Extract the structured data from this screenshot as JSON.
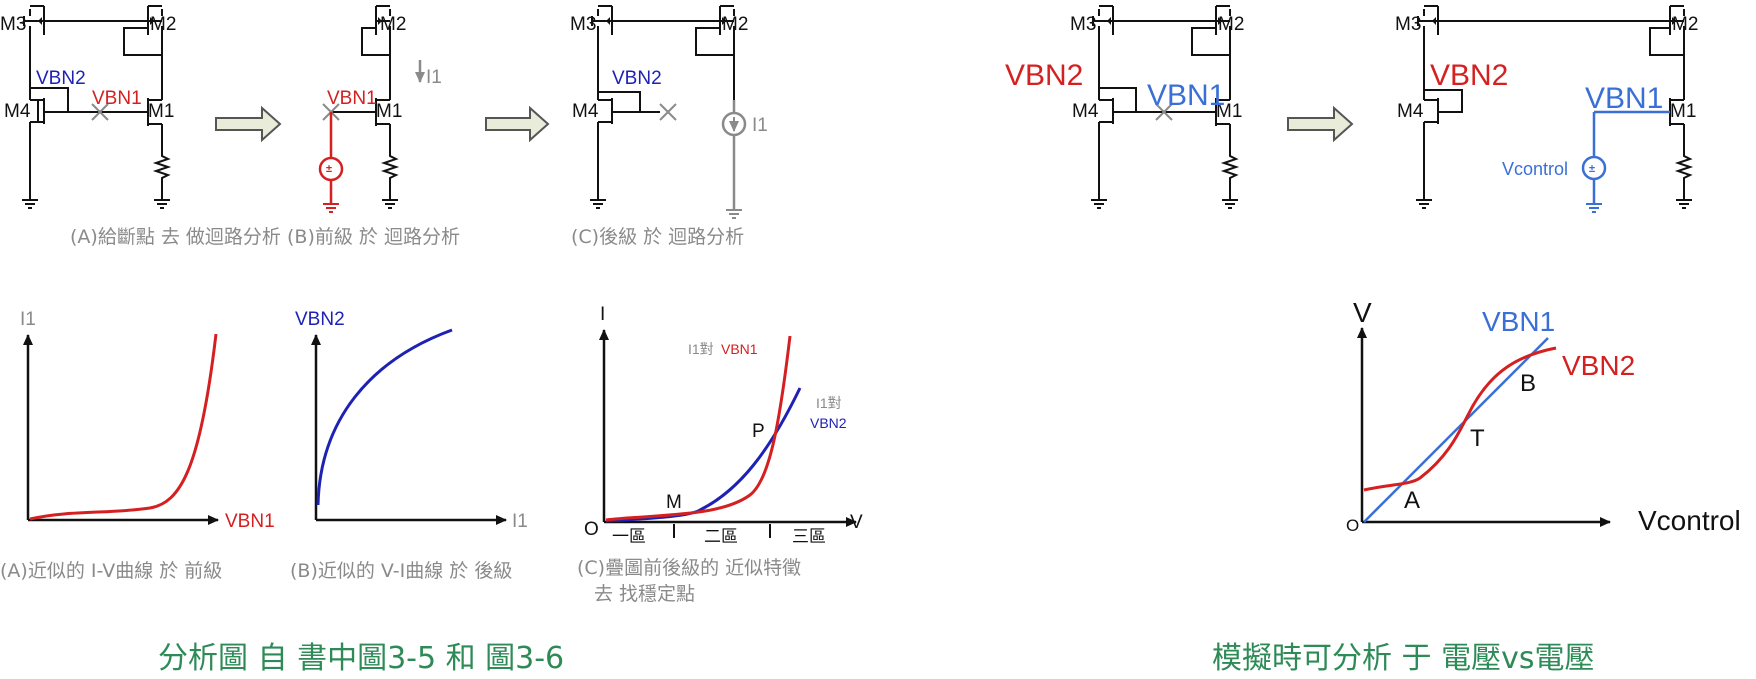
{
  "colors": {
    "wire": "#111111",
    "gray": "#8a8a8a",
    "red": "#d42020",
    "navy": "#1e22b4",
    "blue": "#3a6fd6",
    "green": "#2e8b57",
    "arrow_fill": "#e8ecd8"
  },
  "circuits": {
    "transistors": {
      "m1": "M1",
      "m2": "M2",
      "m3": "M3",
      "m4": "M4"
    },
    "a": {
      "vbn2": "VBN2",
      "vbn1": "VBN1",
      "caption": "(A)給斷點 去 做迴路分析"
    },
    "b": {
      "vbn1": "VBN1",
      "i1": "I1",
      "caption": "(B)前級 於 迴路分析"
    },
    "c": {
      "vbn2": "VBN2",
      "i1": "I1",
      "caption": "(C)後級 於 迴路分析"
    },
    "d": {
      "vbn2": "VBN2",
      "vbn1": "VBN1"
    },
    "e": {
      "vbn2": "VBN2",
      "vbn1": "VBN1",
      "vcontrol": "Vcontrol"
    }
  },
  "graphs": {
    "a": {
      "ylabel": "I1",
      "xlabel": "VBN1",
      "caption": "(A)近似的 I-V曲線 於 前級"
    },
    "b": {
      "ylabel": "VBN2",
      "xlabel": "I1",
      "caption": "(B)近似的 V-I曲線 於 後級"
    },
    "c": {
      "ylabel": "I",
      "xlabel": "V",
      "origin": "O",
      "curve1_label_i": "I1對",
      "curve1_label_v": "VBN1",
      "curve2_label_i": "I1對",
      "curve2_label_v": "VBN2",
      "point_m": "M",
      "point_p": "P",
      "region1": "一區",
      "region2": "二區",
      "region3": "三區",
      "caption_line1": "(C)疊圖前後級的 近似特徵",
      "caption_line2": "去 找穩定點"
    },
    "d": {
      "ylabel": "V",
      "xlabel": "Vcontrol",
      "origin": "O",
      "line_label": "VBN1",
      "curve_label": "VBN2",
      "point_a": "A",
      "point_t": "T",
      "point_b": "B"
    }
  },
  "footer": {
    "left": "分析圖  自  書中圖3-5  和  圖3-6",
    "right": "模擬時可分析  于  電壓vs電壓"
  }
}
